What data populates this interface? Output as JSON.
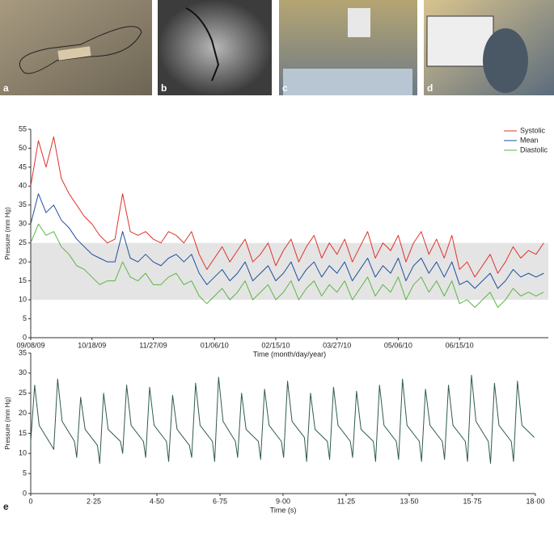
{
  "panel_labels": [
    "a",
    "b",
    "c",
    "d",
    "e"
  ],
  "chart_data": [
    {
      "type": "line",
      "x": [
        "09/08/09",
        "09/13/09",
        "09/18/09",
        "09/23/09",
        "09/28/09",
        "10/03/09",
        "10/08/09",
        "10/13/09",
        "10/18/09",
        "10/23/09",
        "10/28/09",
        "11/02/09",
        "11/07/09",
        "11/12/09",
        "11/17/09",
        "11/22/09",
        "11/27/09",
        "12/02/09",
        "12/07/09",
        "12/12/09",
        "12/17/09",
        "12/22/09",
        "12/27/09",
        "01/01/10",
        "01/06/10",
        "01/11/10",
        "01/16/10",
        "01/21/10",
        "01/26/10",
        "01/31/10",
        "02/05/10",
        "02/10/10",
        "02/15/10",
        "02/20/10",
        "02/25/10",
        "03/02/10",
        "03/07/10",
        "03/12/10",
        "03/17/10",
        "03/22/10",
        "03/27/10",
        "04/01/10",
        "04/06/10",
        "04/11/10",
        "04/16/10",
        "04/21/10",
        "04/26/10",
        "05/01/10",
        "05/06/10",
        "05/11/10",
        "05/16/10",
        "05/21/10",
        "05/26/10",
        "05/31/10",
        "06/05/10",
        "06/10/10",
        "06/15/10",
        "06/20/10",
        "06/25/10",
        "06/30/10",
        "07/05/10",
        "07/10/10",
        "07/15/10",
        "07/20/10",
        "07/25/10",
        "07/30/10",
        "08/04/10",
        "08/09/10"
      ],
      "xlim": [
        "09/08/09",
        "08/12/10"
      ],
      "xticks": [
        "09/08/09",
        "10/18/09",
        "11/27/09",
        "01/06/10",
        "02/15/10",
        "03/27/10",
        "05/06/10",
        "06/15/10"
      ],
      "ylim": [
        0,
        55
      ],
      "yticks": [
        0,
        5,
        10,
        15,
        20,
        25,
        30,
        35,
        40,
        45,
        50,
        55
      ],
      "xlabel": "Time (month/day/year)",
      "ylabel": "Pressure (mm Hg)",
      "legend": "top-right",
      "band": {
        "range": [
          10,
          25
        ],
        "color": "#e4e4e4"
      },
      "series": [
        {
          "name": "Systolic",
          "color": "#e0312b",
          "values": [
            40,
            52,
            45,
            53,
            42,
            38,
            35,
            32,
            30,
            27,
            25,
            26,
            38,
            28,
            27,
            28,
            26,
            25,
            28,
            27,
            25,
            28,
            22,
            18,
            21,
            24,
            20,
            23,
            26,
            20,
            22,
            25,
            19,
            23,
            26,
            20,
            24,
            27,
            21,
            25,
            22,
            26,
            20,
            24,
            28,
            21,
            25,
            23,
            27,
            20,
            25,
            28,
            22,
            26,
            21,
            27,
            18,
            20,
            16,
            19,
            22,
            17,
            20,
            24,
            21,
            23,
            22,
            25
          ]
        },
        {
          "name": "Mean",
          "color": "#1f4e9c",
          "values": [
            30,
            38,
            33,
            35,
            31,
            29,
            26,
            24,
            22,
            21,
            20,
            20,
            28,
            21,
            20,
            22,
            20,
            19,
            21,
            22,
            20,
            22,
            17,
            14,
            16,
            18,
            15,
            17,
            20,
            15,
            17,
            19,
            15,
            17,
            20,
            15,
            18,
            20,
            16,
            19,
            17,
            20,
            15,
            18,
            21,
            16,
            19,
            17,
            21,
            15,
            19,
            21,
            17,
            20,
            16,
            20,
            14,
            15,
            13,
            15,
            17,
            13,
            15,
            18,
            16,
            17,
            16,
            17
          ]
        },
        {
          "name": "Diastolic",
          "color": "#5cb545",
          "values": [
            25,
            30,
            27,
            28,
            24,
            22,
            19,
            18,
            16,
            14,
            15,
            15,
            20,
            16,
            15,
            17,
            14,
            14,
            16,
            17,
            14,
            15,
            11,
            9,
            11,
            13,
            10,
            12,
            15,
            10,
            12,
            14,
            10,
            12,
            15,
            10,
            13,
            15,
            11,
            14,
            12,
            15,
            10,
            13,
            16,
            11,
            14,
            12,
            16,
            10,
            14,
            16,
            12,
            15,
            11,
            15,
            9,
            10,
            8,
            10,
            12,
            8,
            10,
            13,
            11,
            12,
            11,
            12
          ]
        }
      ]
    },
    {
      "type": "line",
      "x": [
        0,
        0.14,
        0.3,
        0.74,
        0.82,
        0.96,
        1.12,
        1.56,
        1.64,
        1.78,
        1.94,
        2.38,
        2.46,
        2.6,
        2.76,
        3.2,
        3.28,
        3.42,
        3.58,
        4.02,
        4.1,
        4.24,
        4.4,
        4.84,
        4.92,
        5.06,
        5.22,
        5.66,
        5.74,
        5.88,
        6.04,
        6.48,
        6.56,
        6.7,
        6.86,
        7.3,
        7.38,
        7.52,
        7.68,
        8.12,
        8.2,
        8.34,
        8.5,
        8.94,
        9.02,
        9.16,
        9.32,
        9.76,
        9.84,
        9.98,
        10.14,
        10.58,
        10.66,
        10.8,
        10.96,
        11.4,
        11.48,
        11.62,
        11.78,
        12.22,
        12.3,
        12.44,
        12.6,
        13.04,
        13.12,
        13.26,
        13.42,
        13.86,
        13.94,
        14.08,
        14.24,
        14.68,
        14.76,
        14.9,
        15.06,
        15.5,
        15.58,
        15.72,
        15.88,
        16.32,
        16.4,
        16.54,
        16.7,
        17.14,
        17.22,
        17.36,
        17.52,
        17.96
      ],
      "xlim": [
        0,
        18
      ],
      "xticks": [
        0,
        {
          "value": 2.25,
          "label": "2·25"
        },
        {
          "value": 4.5,
          "label": "4·50"
        },
        {
          "value": 6.75,
          "label": "6·75"
        },
        {
          "value": 9,
          "label": "9·00"
        },
        {
          "value": 11.25,
          "label": "11·25"
        },
        {
          "value": 13.5,
          "label": "13·50"
        },
        {
          "value": 15.75,
          "label": "15·75"
        },
        {
          "value": 18,
          "label": "18·00"
        }
      ],
      "ylim": [
        0,
        35
      ],
      "yticks": [
        0,
        5,
        10,
        15,
        20,
        25,
        30,
        35
      ],
      "xlabel": "Time (s)",
      "ylabel": "Pressure (mm Hg)",
      "series": [
        {
          "color": "#2f5a50",
          "values": [
            13,
            27,
            17,
            12,
            11,
            28.5,
            18,
            13,
            9,
            24,
            16,
            12,
            7.5,
            25,
            16,
            13,
            10,
            27,
            17,
            13,
            9,
            26.5,
            17,
            13,
            8,
            24.5,
            16,
            12,
            9,
            27.5,
            17,
            13,
            8,
            29,
            18,
            13,
            9,
            25,
            16,
            13,
            8.5,
            26,
            17,
            13,
            9,
            28,
            18,
            14,
            8,
            25,
            16,
            13,
            8.5,
            26.5,
            17,
            13,
            9,
            25.5,
            16,
            13,
            8,
            27,
            17,
            13,
            8.5,
            28.5,
            17,
            13,
            8,
            26,
            17,
            13,
            8.5,
            27,
            17,
            13,
            8,
            29.5,
            18,
            13,
            7.5,
            27.5,
            17,
            13,
            8,
            28,
            17,
            14
          ]
        }
      ]
    }
  ]
}
